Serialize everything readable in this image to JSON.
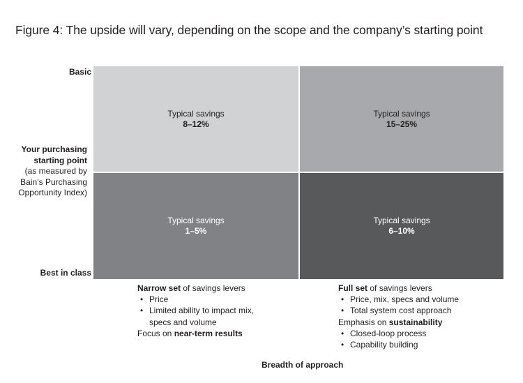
{
  "title": "Figure 4: The upside will vary, depending on the scope and the company’s starting point",
  "y_axis": {
    "top_label": "Basic",
    "bottom_label": "Best in class",
    "title_line1": "Your purchasing",
    "title_line2": "starting point",
    "subtitle_line1": "(as measured by",
    "subtitle_line2": "Bain’s Purchasing",
    "subtitle_line3": "Opportunity Index)"
  },
  "quadrants": [
    {
      "label": "Typical savings",
      "value": "8–12%",
      "color": "#d1d2d4"
    },
    {
      "label": "Typical savings",
      "value": "15–25%",
      "color": "#a7a9ac"
    },
    {
      "label": "Typical savings",
      "value": "1–5%",
      "color": "#818285"
    },
    {
      "label": "Typical savings",
      "value": "6–10%",
      "color": "#58595b"
    }
  ],
  "narrow": {
    "head_bold": "Narrow set",
    "head_rest": " of savings levers",
    "bullet1": "Price",
    "bullet2_line1": "Limited ability to impact mix,",
    "bullet2_line2": "specs and volume",
    "focus_pre": "Focus on ",
    "focus_bold": "near-term results"
  },
  "full": {
    "head_bold": "Full set",
    "head_rest": " of savings levers",
    "bullet1": "Price, mix, specs and volume",
    "bullet2": "Total system cost approach",
    "emphasis_pre": "Emphasis on ",
    "emphasis_bold": "sustainability",
    "bullet3": "Closed-loop process",
    "bullet4": "Capability building"
  },
  "x_axis_title": "Breadth of approach"
}
